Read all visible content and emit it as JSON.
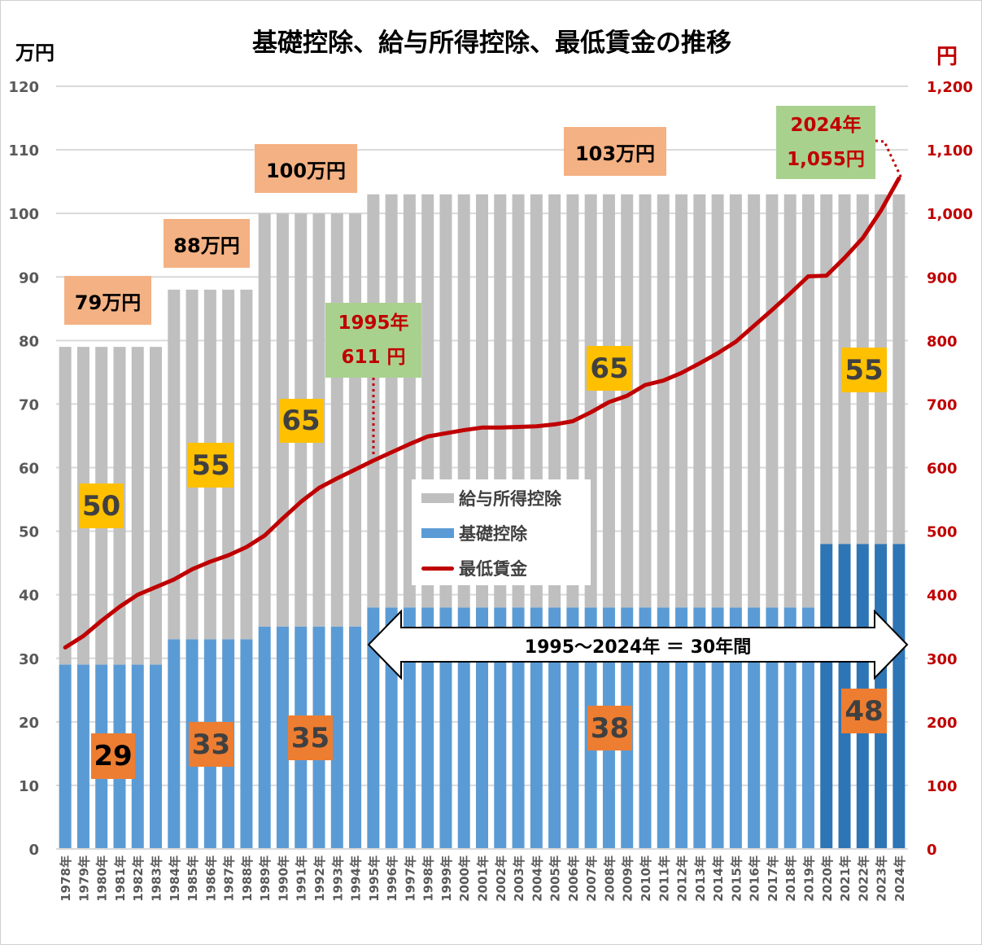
{
  "chart_data": {
    "type": "bar",
    "title": "基礎控除、給与所得控除、最低賃金の推移",
    "ylabel_left": "万円",
    "ylabel_right": "円",
    "ylim_left": [
      0,
      120
    ],
    "ylim_right": [
      0,
      1200
    ],
    "yticks_left": [
      "0",
      "10",
      "20",
      "30",
      "40",
      "50",
      "60",
      "70",
      "80",
      "90",
      "100",
      "110",
      "120"
    ],
    "yticks_right": [
      "0",
      "100",
      "200",
      "300",
      "400",
      "500",
      "600",
      "700",
      "800",
      "900",
      "1,000",
      "1,100",
      "1,200"
    ],
    "grid": true,
    "legend_placement": "center",
    "categories": [
      "1978年",
      "1979年",
      "1980年",
      "1981年",
      "1982年",
      "1983年",
      "1984年",
      "1985年",
      "1986年",
      "1987年",
      "1988年",
      "1989年",
      "1990年",
      "1991年",
      "1992年",
      "1993年",
      "1994年",
      "1995年",
      "1996年",
      "1997年",
      "1998年",
      "1999年",
      "2000年",
      "2001年",
      "2002年",
      "2003年",
      "2004年",
      "2005年",
      "2006年",
      "2007年",
      "2008年",
      "2009年",
      "2010年",
      "2011年",
      "2012年",
      "2013年",
      "2014年",
      "2015年",
      "2016年",
      "2017年",
      "2018年",
      "2019年",
      "2020年",
      "2021年",
      "2022年",
      "2023年",
      "2024年"
    ],
    "series": [
      {
        "name": "基礎控除",
        "type": "bar",
        "axis": "left",
        "color": "#5B9BD5",
        "color_recent": "#2E75B6",
        "values": [
          29,
          29,
          29,
          29,
          29,
          29,
          33,
          33,
          33,
          33,
          33,
          35,
          35,
          35,
          35,
          35,
          35,
          38,
          38,
          38,
          38,
          38,
          38,
          38,
          38,
          38,
          38,
          38,
          38,
          38,
          38,
          38,
          38,
          38,
          38,
          38,
          38,
          38,
          38,
          38,
          38,
          38,
          48,
          48,
          48,
          48,
          48
        ]
      },
      {
        "name": "給与所得控除",
        "type": "bar",
        "axis": "left",
        "color": "#BFBFBF",
        "values": [
          50,
          50,
          50,
          50,
          50,
          50,
          55,
          55,
          55,
          55,
          55,
          65,
          65,
          65,
          65,
          65,
          65,
          65,
          65,
          65,
          65,
          65,
          65,
          65,
          65,
          65,
          65,
          65,
          65,
          65,
          65,
          65,
          65,
          65,
          65,
          65,
          65,
          65,
          65,
          65,
          65,
          65,
          55,
          55,
          55,
          55,
          55
        ]
      },
      {
        "name": "最低賃金",
        "type": "line",
        "axis": "right",
        "color": "#C00000",
        "values": [
          317,
          335,
          359,
          381,
          400,
          412,
          424,
          440,
          452,
          462,
          475,
          493,
          520,
          546,
          568,
          583,
          597,
          611,
          624,
          637,
          649,
          654,
          659,
          663,
          663,
          664,
          665,
          668,
          673,
          687,
          703,
          713,
          730,
          737,
          749,
          764,
          780,
          798,
          823,
          848,
          874,
          901,
          902,
          930,
          961,
          1004,
          1055
        ]
      }
    ],
    "annotations": {
      "total79": "79万円",
      "total88": "88万円",
      "total100": "100万円",
      "total103": "103万円",
      "sal50": "50",
      "sal55a": "55",
      "sal65a": "65",
      "sal65b": "65",
      "sal55b": "55",
      "basic29": "29",
      "basic33": "33",
      "basic35": "35",
      "basic38": "38",
      "basic48": "48",
      "wage1995_year": "1995年",
      "wage1995_value": "611 円",
      "wage2024_year": "2024年",
      "wage2024_value": "1,055円",
      "span": "1995～2024年 ＝ 30年間"
    }
  }
}
